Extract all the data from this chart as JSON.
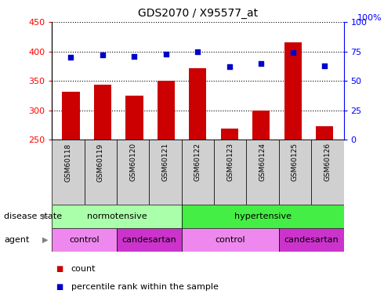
{
  "title": "GDS2070 / X95577_at",
  "samples": [
    "GSM60118",
    "GSM60119",
    "GSM60120",
    "GSM60121",
    "GSM60122",
    "GSM60123",
    "GSM60124",
    "GSM60125",
    "GSM60126"
  ],
  "counts": [
    332,
    344,
    325,
    350,
    371,
    269,
    299,
    416,
    273
  ],
  "percentiles": [
    70,
    72,
    71,
    73,
    75,
    62,
    65,
    74,
    63
  ],
  "ylim_left": [
    250,
    450
  ],
  "ylim_right": [
    0,
    100
  ],
  "yticks_left": [
    250,
    300,
    350,
    400,
    450
  ],
  "yticks_right": [
    0,
    25,
    50,
    75,
    100
  ],
  "bar_color": "#cc0000",
  "dot_color": "#0000cc",
  "bar_width": 0.55,
  "disease_state_groups": [
    {
      "label": "normotensive",
      "start": 0,
      "end": 4,
      "color": "#aaffaa"
    },
    {
      "label": "hypertensive",
      "start": 4,
      "end": 9,
      "color": "#44ee44"
    }
  ],
  "agent_groups": [
    {
      "label": "control",
      "start": 0,
      "end": 2,
      "color": "#ee88ee"
    },
    {
      "label": "candesartan",
      "start": 2,
      "end": 4,
      "color": "#cc33cc"
    },
    {
      "label": "control",
      "start": 4,
      "end": 7,
      "color": "#ee88ee"
    },
    {
      "label": "candesartan",
      "start": 7,
      "end": 9,
      "color": "#cc33cc"
    }
  ],
  "disease_label": "disease state",
  "agent_label": "agent",
  "legend_count": "count",
  "legend_percentile": "percentile rank within the sample",
  "tick_bg_color": "#d0d0d0"
}
